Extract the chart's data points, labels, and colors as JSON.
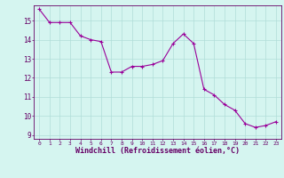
{
  "x": [
    0,
    1,
    2,
    3,
    4,
    5,
    6,
    7,
    8,
    9,
    10,
    11,
    12,
    13,
    14,
    15,
    16,
    17,
    18,
    19,
    20,
    21,
    22,
    23
  ],
  "y": [
    15.6,
    14.9,
    14.9,
    14.9,
    14.2,
    14.0,
    13.9,
    12.3,
    12.3,
    12.6,
    12.6,
    12.7,
    12.9,
    13.8,
    14.3,
    13.8,
    11.4,
    11.1,
    10.6,
    10.3,
    9.6,
    9.4,
    9.5,
    9.7
  ],
  "line_color": "#990099",
  "marker": "+",
  "marker_size": 4,
  "bg_color": "#d5f5f0",
  "grid_color": "#b0ddd8",
  "xlabel": "Windchill (Refroidissement éolien,°C)",
  "xlabel_color": "#660066",
  "tick_color": "#660066",
  "ylim": [
    8.8,
    15.8
  ],
  "yticks": [
    9,
    10,
    11,
    12,
    13,
    14,
    15
  ],
  "xlim": [
    -0.5,
    23.5
  ],
  "xticks": [
    0,
    1,
    2,
    3,
    4,
    5,
    6,
    7,
    8,
    9,
    10,
    11,
    12,
    13,
    14,
    15,
    16,
    17,
    18,
    19,
    20,
    21,
    22,
    23
  ]
}
